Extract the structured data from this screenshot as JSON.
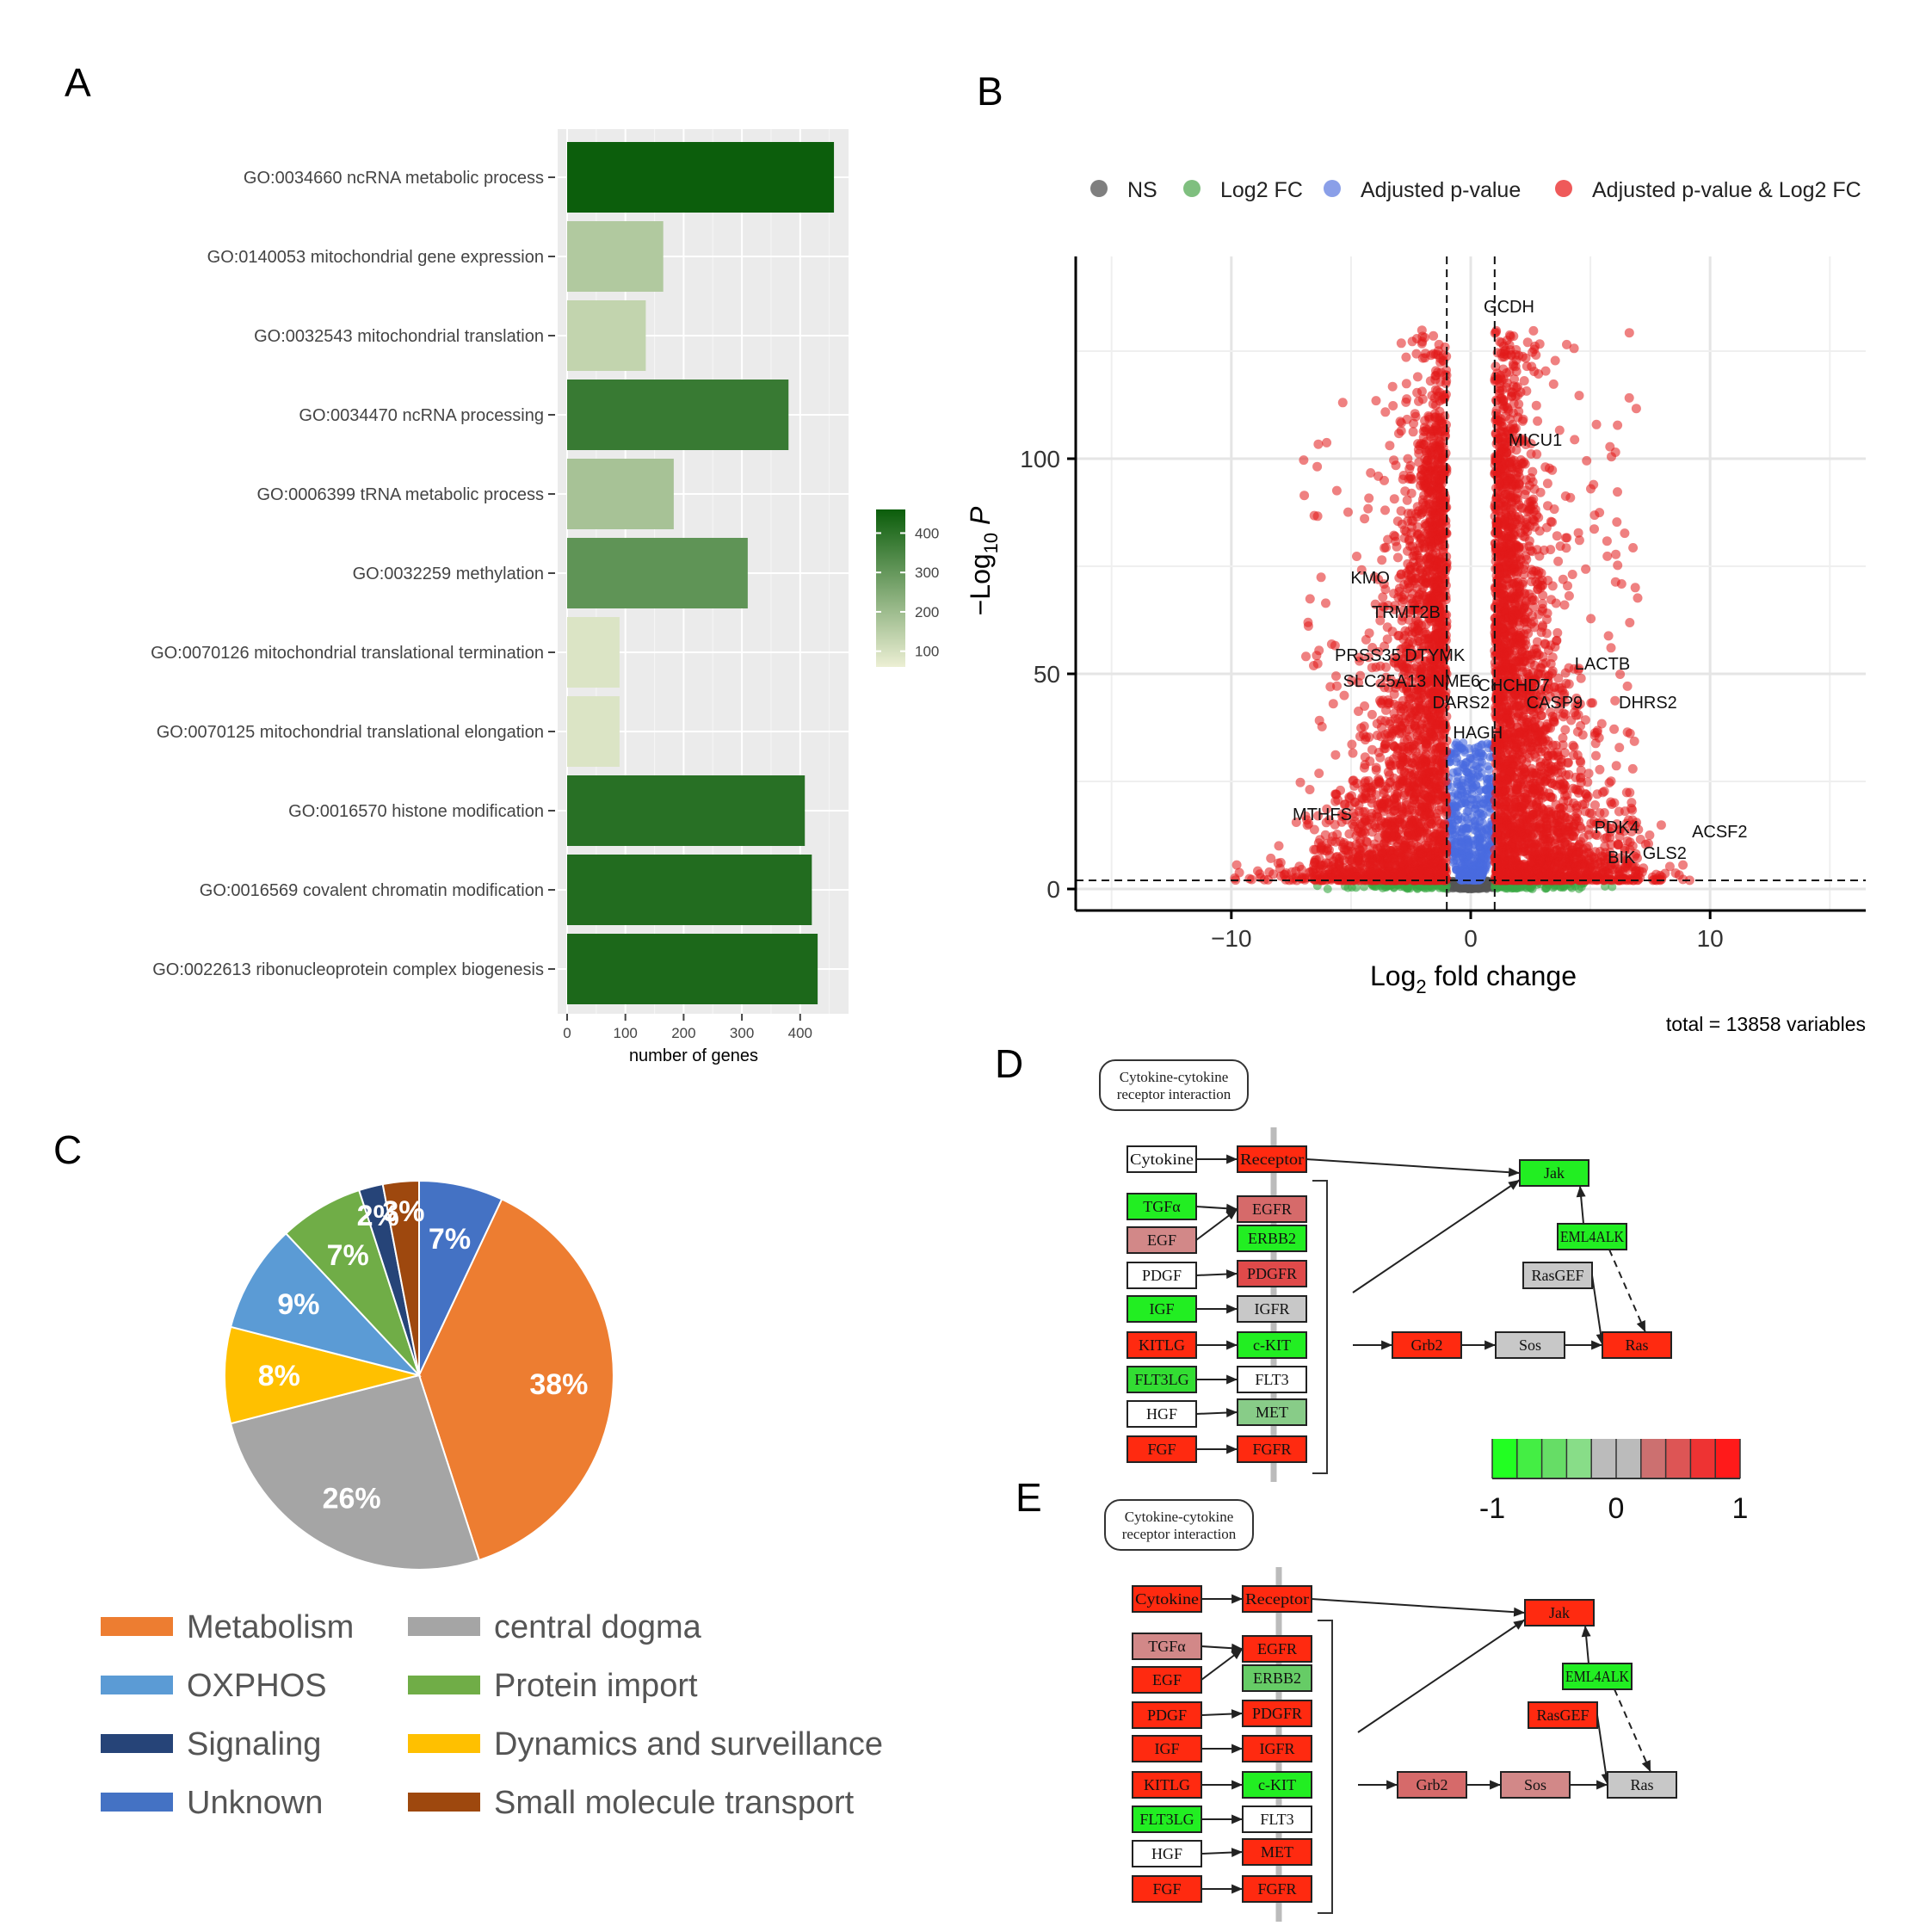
{
  "panel_labels": {
    "a": "A",
    "b": "B",
    "c": "C",
    "d": "D",
    "e": "E"
  },
  "chart_data": [
    {
      "type": "bar",
      "orientation": "horizontal",
      "panel": "A",
      "categories": [
        "GO:0034660 ncRNA metabolic process",
        "GO:0140053 mitochondrial gene expression",
        "GO:0032543 mitochondrial translation",
        "GO:0034470 ncRNA processing",
        "GO:0006399 tRNA metabolic process",
        "GO:0032259 methylation",
        "GO:0070126 mitochondrial translational termination",
        "GO:0070125 mitochondrial translational elongation",
        "GO:0016570 histone modification",
        "GO:0016569 covalent chromatin modification",
        "GO:0022613 ribonucleoprotein complex biogenesis"
      ],
      "values": [
        458,
        165,
        135,
        380,
        183,
        310,
        90,
        90,
        408,
        420,
        430
      ],
      "xlabel": "number of genes",
      "xlim": [
        0,
        460
      ],
      "xticks": [
        "0",
        "100",
        "200",
        "300",
        "400"
      ],
      "legend": {
        "ticks": [
          "400",
          "300",
          "200",
          "100"
        ],
        "range": [
          60,
          460
        ],
        "low_color": "#ecefd4",
        "high_color": "#0b5d0b"
      }
    },
    {
      "type": "scatter",
      "panel": "B",
      "xlabel": "Log2 fold change",
      "xlabel_main": "Log",
      "xlabel_sub": "2",
      "xlabel_rest": " fold change",
      "ylabel_main": "−Log",
      "ylabel_sub": "10",
      "ylabel_rest": " P",
      "xlim": [
        -16.5,
        16.5
      ],
      "ylim": [
        -5,
        147
      ],
      "xticks": [
        {
          "v": -10,
          "label": "−10"
        },
        {
          "v": 0,
          "label": "0"
        },
        {
          "v": 10,
          "label": "10"
        }
      ],
      "yticks": [
        {
          "v": 0,
          "label": "0"
        },
        {
          "v": 50,
          "label": "50"
        },
        {
          "v": 100,
          "label": "100"
        }
      ],
      "fc_cutoff": 1,
      "p_cutoff": 2,
      "legend": [
        {
          "label": "NS",
          "color": "#7f7f7f"
        },
        {
          "label": "Log2 FC",
          "color": "#7fbf7f"
        },
        {
          "label": "Adjusted p-value",
          "color": "#8a9fe8"
        },
        {
          "label": "Adjusted p-value & Log2 FC",
          "color": "#ef5a5a"
        }
      ],
      "caption": "total = 13858 variables",
      "colors": {
        "ns": "#555555",
        "fc": "#3aa845",
        "p": "#4a6be0",
        "both": "#e11a1a"
      },
      "labeled_genes": [
        {
          "name": "GCDH",
          "x": 1.6,
          "y": 134
        },
        {
          "name": "MICU1",
          "x": 2.7,
          "y": 103
        },
        {
          "name": "KMO",
          "x": -4.2,
          "y": 71
        },
        {
          "name": "TRMT2B",
          "x": -2.7,
          "y": 63
        },
        {
          "name": "PRSS35",
          "x": -4.3,
          "y": 53
        },
        {
          "name": "DTYMK",
          "x": -1.5,
          "y": 53
        },
        {
          "name": "SLC25A13",
          "x": -3.6,
          "y": 47
        },
        {
          "name": "NME6",
          "x": -0.6,
          "y": 47
        },
        {
          "name": "CHCHD7",
          "x": 1.8,
          "y": 46
        },
        {
          "name": "LACTB",
          "x": 5.5,
          "y": 51
        },
        {
          "name": "DARS2",
          "x": -0.4,
          "y": 42
        },
        {
          "name": "CASP9",
          "x": 3.5,
          "y": 42
        },
        {
          "name": "DHRS2",
          "x": 7.4,
          "y": 42
        },
        {
          "name": "HAGH",
          "x": 0.3,
          "y": 35
        },
        {
          "name": "MTHFS",
          "x": -6.2,
          "y": 16
        },
        {
          "name": "PDK4",
          "x": 6.1,
          "y": 13
        },
        {
          "name": "ACSF2",
          "x": 10.4,
          "y": 12
        },
        {
          "name": "BIK",
          "x": 6.3,
          "y": 6
        },
        {
          "name": "GLS2",
          "x": 8.1,
          "y": 7
        }
      ]
    },
    {
      "type": "pie",
      "panel": "C",
      "start_category": "Unknown",
      "direction": "clockwise",
      "slices": [
        {
          "label": "Unknown",
          "value": 7,
          "text": "7%",
          "color": "#4472c4"
        },
        {
          "label": "Metabolism",
          "value": 38,
          "text": "38%",
          "color": "#ed7d31"
        },
        {
          "label": "central  dogma",
          "value": 26,
          "text": "26%",
          "color": "#a5a5a5"
        },
        {
          "label": "Dynamics and surveillance",
          "value": 8,
          "text": "8%",
          "color": "#ffc000"
        },
        {
          "label": "OXPHOS",
          "value": 9,
          "text": "9%",
          "color": "#5b9bd5"
        },
        {
          "label": "Protein import",
          "value": 7,
          "text": "7%",
          "color": "#70ad47"
        },
        {
          "label": "Signaling",
          "value": 2,
          "text": "2%",
          "color": "#264478"
        },
        {
          "label": "Small molecule transport",
          "value": 3,
          "text": "3%",
          "color": "#9e480e"
        }
      ],
      "legend_order": [
        "Metabolism",
        "central  dogma",
        "OXPHOS",
        "Protein import",
        "Signaling",
        "Dynamics and surveillance",
        "Unknown",
        "Small molecule transport"
      ]
    }
  ],
  "pathway": {
    "title_line1": "Cytokine-cytokine",
    "title_line2": "receptor interaction",
    "labels": {
      "cytokine": "Cytokine",
      "receptor": "Receptor",
      "jak": "Jak",
      "tgfa": "TGFα",
      "egfr": "EGFR",
      "egf": "EGF",
      "erbb2": "ERBB2",
      "eml4alk": "EML4ALK",
      "pdgf": "PDGF",
      "pdgfr": "PDGFR",
      "rasgef": "RasGEF",
      "igf": "IGF",
      "igfr": "IGFR",
      "kitlg": "KITLG",
      "ckit": "c-KIT",
      "grb2": "Grb2",
      "sos": "Sos",
      "ras": "Ras",
      "flt3lg": "FLT3LG",
      "flt3": "FLT3",
      "hgf": "HGF",
      "met": "MET",
      "fgf": "FGF",
      "fgfr": "FGFR"
    },
    "d_colors": {
      "cytokine": "#ffffff",
      "receptor": "#ff2a10",
      "jak": "#22ee22",
      "tgfa": "#22ee22",
      "egfr": "#d66a6a",
      "egf": "#d28888",
      "erbb2": "#22ee22",
      "eml4alk": "#22ee22",
      "pdgf": "#ffffff",
      "pdgfr": "#e04a4a",
      "rasgef": "#c8c8c8",
      "igf": "#22ee22",
      "igfr": "#c8c8c8",
      "kitlg": "#ff2a10",
      "ckit": "#22ee22",
      "grb2": "#ff2a10",
      "sos": "#c8c8c8",
      "ras": "#ff2a10",
      "flt3lg": "#33dd33",
      "flt3": "#ffffff",
      "hgf": "#ffffff",
      "met": "#88cc88",
      "fgf": "#ff2a10",
      "fgfr": "#ff2a10"
    },
    "e_colors": {
      "cytokine": "#ff2a10",
      "receptor": "#ff2a10",
      "jak": "#ff2a10",
      "tgfa": "#d28888",
      "egfr": "#ff2a10",
      "egf": "#ff2a10",
      "erbb2": "#66cc66",
      "eml4alk": "#22ee22",
      "pdgf": "#ff2a10",
      "pdgfr": "#ff2a10",
      "rasgef": "#ff2a10",
      "igf": "#ff2a10",
      "igfr": "#ff2a10",
      "kitlg": "#ff2a10",
      "ckit": "#22ee22",
      "grb2": "#d66a6a",
      "sos": "#d28888",
      "ras": "#c8c8c8",
      "flt3lg": "#22ee22",
      "flt3": "#ffffff",
      "hgf": "#ffffff",
      "met": "#ff2a10",
      "fgf": "#ff2a10",
      "fgfr": "#ff2a10"
    },
    "scale": {
      "labels": [
        "-1",
        "0",
        "1"
      ],
      "colors": [
        "#22ff22",
        "#44ee44",
        "#66dd66",
        "#88dd88",
        "#bbbbbb",
        "#bbbbbb",
        "#cc7070",
        "#dd5555",
        "#ee3333",
        "#ff1a1a"
      ]
    }
  }
}
